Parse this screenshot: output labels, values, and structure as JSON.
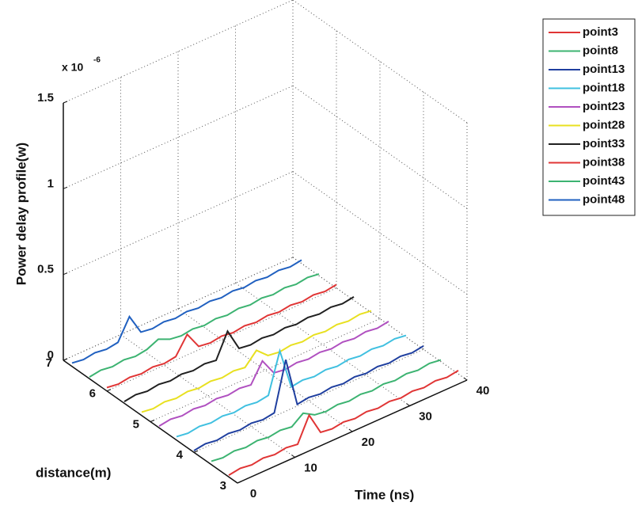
{
  "chart_data": {
    "type": "waterfall3d",
    "zlabel": "Power delay profile(w)",
    "xlabel": "Time (ns)",
    "ylabel": "distance(m)",
    "exponent_base": "x 10",
    "exponent_power": "-6",
    "x": [
      0,
      2,
      4,
      6,
      8,
      10,
      12,
      14,
      16,
      18,
      20,
      22,
      24,
      26,
      28,
      30,
      32,
      34,
      36,
      38,
      40
    ],
    "xlim": [
      0,
      40
    ],
    "xticks": [
      0,
      10,
      20,
      30,
      40
    ],
    "ylim": [
      3,
      7
    ],
    "yticks": [
      3,
      4,
      5,
      6,
      7
    ],
    "zlim": [
      0,
      1.5e-06
    ],
    "zticks": [
      0,
      {
        "value": 5e-07,
        "label": "0.5"
      },
      {
        "value": 1e-06,
        "label": "1"
      },
      {
        "value": 1.5e-06,
        "label": "1.5"
      }
    ],
    "grid": true,
    "legend": "outside-top-right",
    "series": [
      {
        "name": "point3",
        "color": "#e03535",
        "distance": 3.2,
        "values": [
          1e-08,
          2e-08,
          1e-08,
          2e-08,
          1e-08,
          2e-08,
          1e-08,
          1.5e-07,
          2e-08,
          1e-08,
          2e-08,
          1e-08,
          2e-08,
          1e-08,
          2e-08,
          1e-08,
          2e-08,
          1e-08,
          2e-08,
          1e-08,
          2e-08
        ]
      },
      {
        "name": "point8",
        "color": "#3cb371",
        "distance": 3.6,
        "values": [
          2e-08,
          1e-08,
          2e-08,
          1e-08,
          2e-08,
          1e-08,
          2e-08,
          1e-08,
          6e-08,
          2e-08,
          1e-08,
          2e-08,
          1e-08,
          2e-08,
          1e-08,
          2e-08,
          1e-08,
          2e-08,
          1e-08,
          2e-08,
          1e-08
        ]
      },
      {
        "name": "point13",
        "color": "#1f3f9f",
        "distance": 4.0,
        "values": [
          1e-08,
          2e-08,
          1e-08,
          2e-08,
          1e-08,
          2e-08,
          1e-08,
          2e-08,
          3e-07,
          1e-08,
          2e-08,
          1e-08,
          2e-08,
          1e-08,
          2e-08,
          1e-08,
          2e-08,
          1e-08,
          2e-08,
          1e-08,
          2e-08
        ]
      },
      {
        "name": "point18",
        "color": "#40c0e0",
        "distance": 4.4,
        "values": [
          2e-08,
          1e-08,
          2e-08,
          1e-08,
          2e-08,
          1e-08,
          2e-08,
          1e-08,
          2e-08,
          2.5e-07,
          1e-08,
          2e-08,
          1e-08,
          2e-08,
          1e-08,
          2e-08,
          1e-08,
          2e-08,
          1e-08,
          2e-08,
          1e-08
        ]
      },
      {
        "name": "point23",
        "color": "#b050c0",
        "distance": 4.8,
        "values": [
          1e-08,
          2e-08,
          1e-08,
          2e-08,
          1e-08,
          2e-08,
          1e-08,
          2e-08,
          1e-08,
          1.2e-07,
          2e-08,
          1e-08,
          2e-08,
          1e-08,
          2e-08,
          1e-08,
          2e-08,
          1e-08,
          2e-08,
          1e-08,
          2e-08
        ]
      },
      {
        "name": "point28",
        "color": "#e8e020",
        "distance": 5.2,
        "values": [
          2e-08,
          1e-08,
          2e-08,
          1e-08,
          2e-08,
          1e-08,
          2e-08,
          1e-08,
          2e-08,
          1e-08,
          8e-08,
          2e-08,
          1e-08,
          2e-08,
          1e-08,
          2e-08,
          1e-08,
          2e-08,
          1e-08,
          2e-08,
          1e-08
        ]
      },
      {
        "name": "point33",
        "color": "#202020",
        "distance": 5.6,
        "values": [
          1e-08,
          2e-08,
          1e-08,
          2e-08,
          1e-08,
          2e-08,
          1e-08,
          2e-08,
          1e-08,
          1.5e-07,
          2e-08,
          1e-08,
          2e-08,
          1e-08,
          2e-08,
          1e-08,
          2e-08,
          1e-08,
          2e-08,
          1e-08,
          2e-08
        ]
      },
      {
        "name": "point38",
        "color": "#e03535",
        "distance": 6.0,
        "values": [
          2e-08,
          1e-08,
          2e-08,
          1e-08,
          2e-08,
          1e-08,
          2e-08,
          1.2e-07,
          2e-08,
          1e-08,
          2e-08,
          1e-08,
          2e-08,
          1e-08,
          2e-08,
          1e-08,
          2e-08,
          1e-08,
          2e-08,
          1e-08,
          2e-08
        ]
      },
      {
        "name": "point43",
        "color": "#3cb371",
        "distance": 6.4,
        "values": [
          1e-08,
          2e-08,
          1e-08,
          2e-08,
          1e-08,
          2e-08,
          5e-08,
          2e-08,
          1e-08,
          2e-08,
          1e-08,
          2e-08,
          1e-08,
          2e-08,
          1e-08,
          2e-08,
          1e-08,
          2e-08,
          1e-08,
          2e-08,
          1e-08
        ]
      },
      {
        "name": "point48",
        "color": "#2060c0",
        "distance": 6.8,
        "values": [
          2e-08,
          1e-08,
          2e-08,
          1e-08,
          2e-08,
          1.4e-07,
          2e-08,
          1e-08,
          2e-08,
          1e-08,
          2e-08,
          1e-08,
          2e-08,
          1e-08,
          2e-08,
          1e-08,
          2e-08,
          1e-08,
          2e-08,
          1e-08,
          2e-08
        ]
      }
    ]
  }
}
